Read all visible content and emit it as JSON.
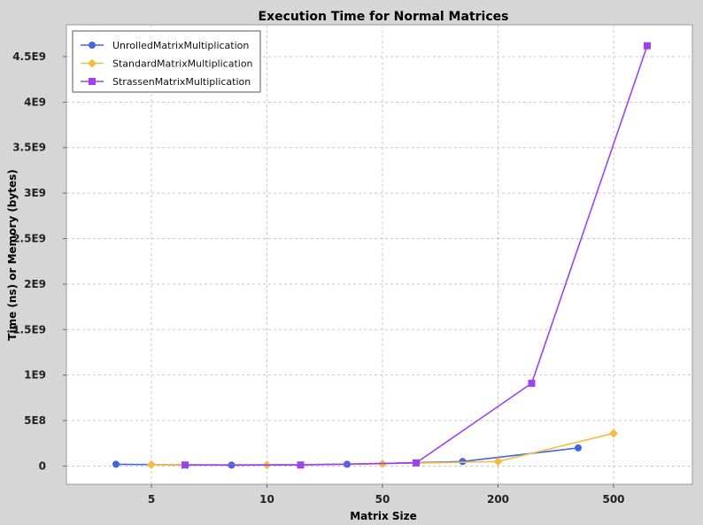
{
  "chart_data": {
    "type": "line",
    "title": "Execution Time for Normal Matrices",
    "xlabel": "Matrix Size",
    "ylabel": "Time (ns) or Memory (bytes)",
    "categories": [
      "5",
      "10",
      "50",
      "200",
      "500"
    ],
    "ylim": [
      -200000000,
      4850000000
    ],
    "yticks": [
      {
        "value": 0,
        "label": "0"
      },
      {
        "value": 500000000,
        "label": "5E8"
      },
      {
        "value": 1000000000,
        "label": "1E9"
      },
      {
        "value": 1500000000,
        "label": "1.5E9"
      },
      {
        "value": 2000000000,
        "label": "2E9"
      },
      {
        "value": 2500000000,
        "label": "2.5E9"
      },
      {
        "value": 3000000000,
        "label": "3E9"
      },
      {
        "value": 3500000000,
        "label": "3.5E9"
      },
      {
        "value": 4000000000,
        "label": "4E9"
      },
      {
        "value": 4500000000,
        "label": "4.5E9"
      }
    ],
    "grid": true,
    "legend_position": "top-left",
    "series": [
      {
        "name": "UnrolledMatrixMultiplication",
        "color": "#3f66e3",
        "marker": "circle",
        "values": [
          20000000,
          10000000,
          20000000,
          50000000,
          200000000
        ]
      },
      {
        "name": "StandardMatrixMultiplication",
        "color": "#f5bc44",
        "marker": "diamond",
        "values": [
          15000000,
          12000000,
          25000000,
          50000000,
          360000000
        ]
      },
      {
        "name": "StrassenMatrixMultiplication",
        "color": "#9d42ef",
        "marker": "square",
        "values": [
          12000000,
          12000000,
          35000000,
          910000000,
          4620000000
        ]
      }
    ]
  }
}
